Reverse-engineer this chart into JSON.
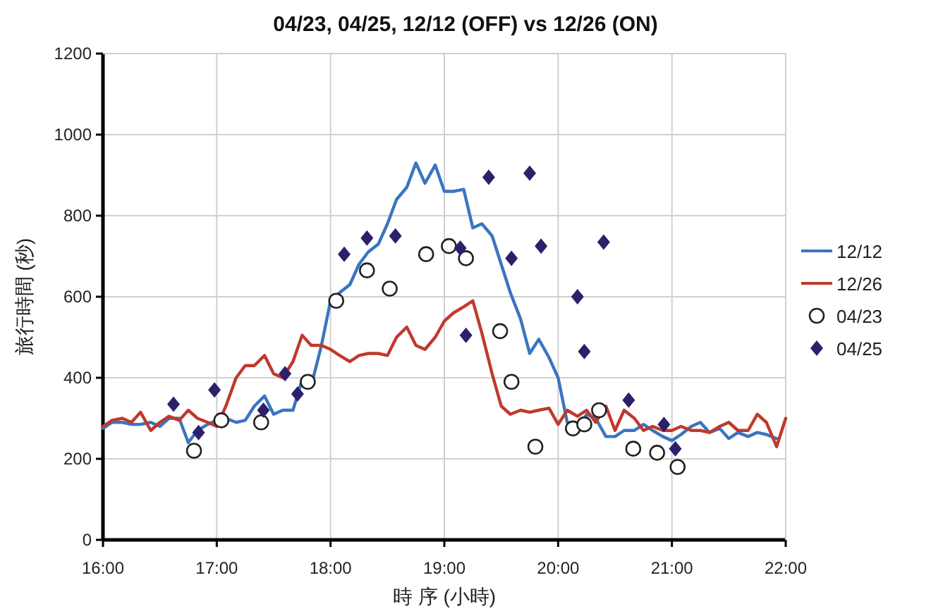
{
  "chart_data": {
    "type": "line",
    "title": "04/23, 04/25, 12/12 (OFF) vs 12/26 (ON)",
    "xlabel": "時 序 (小時)",
    "ylabel": "旅行時間 (秒)",
    "xlim": [
      16,
      22
    ],
    "ylim": [
      0,
      1200
    ],
    "xticks": [
      {
        "value": 16,
        "label": "16:00"
      },
      {
        "value": 17,
        "label": "17:00"
      },
      {
        "value": 18,
        "label": "18:00"
      },
      {
        "value": 19,
        "label": "19:00"
      },
      {
        "value": 20,
        "label": "20:00"
      },
      {
        "value": 21,
        "label": "21:00"
      },
      {
        "value": 22,
        "label": "22:00"
      }
    ],
    "yticks": [
      0,
      200,
      400,
      600,
      800,
      1000,
      1200
    ],
    "grid": true,
    "legend": "right",
    "series": [
      {
        "name": "12/12",
        "type": "line",
        "color": "#3a75c0",
        "marker": "none",
        "x": [
          16.0,
          16.08,
          16.17,
          16.25,
          16.33,
          16.42,
          16.5,
          16.58,
          16.67,
          16.75,
          16.83,
          16.92,
          17.0,
          17.08,
          17.17,
          17.25,
          17.33,
          17.42,
          17.5,
          17.58,
          17.67,
          17.75,
          17.83,
          17.92,
          18.0,
          18.08,
          18.17,
          18.25,
          18.33,
          18.42,
          18.5,
          18.58,
          18.67,
          18.75,
          18.83,
          18.92,
          19.0,
          19.08,
          19.17,
          19.25,
          19.33,
          19.42,
          19.5,
          19.58,
          19.67,
          19.75,
          19.83,
          19.92,
          20.0,
          20.08,
          20.17,
          20.25,
          20.33,
          20.42,
          20.5,
          20.58,
          20.67,
          20.75,
          20.83,
          20.92,
          21.0,
          21.08,
          21.17,
          21.25,
          21.33,
          21.42,
          21.5,
          21.58,
          21.67,
          21.75,
          21.83,
          21.92
        ],
        "values": [
          275,
          290,
          290,
          285,
          285,
          290,
          280,
          300,
          300,
          240,
          270,
          285,
          295,
          300,
          290,
          295,
          330,
          355,
          310,
          320,
          320,
          395,
          380,
          480,
          590,
          610,
          630,
          680,
          710,
          730,
          780,
          840,
          870,
          930,
          880,
          925,
          860,
          860,
          865,
          770,
          780,
          750,
          680,
          610,
          545,
          460,
          495,
          450,
          400,
          290,
          270,
          310,
          300,
          255,
          255,
          270,
          270,
          285,
          270,
          255,
          245,
          260,
          280,
          290,
          265,
          275,
          250,
          265,
          255,
          265,
          260,
          250
        ]
      },
      {
        "name": "12/26",
        "type": "line",
        "color": "#c0392b",
        "marker": "none",
        "x": [
          16.0,
          16.08,
          16.17,
          16.25,
          16.33,
          16.42,
          16.5,
          16.58,
          16.67,
          16.75,
          16.83,
          16.92,
          17.0,
          17.08,
          17.17,
          17.25,
          17.33,
          17.42,
          17.5,
          17.58,
          17.67,
          17.75,
          17.83,
          17.92,
          18.0,
          18.08,
          18.17,
          18.25,
          18.33,
          18.42,
          18.5,
          18.58,
          18.67,
          18.75,
          18.83,
          18.92,
          19.0,
          19.08,
          19.17,
          19.25,
          19.33,
          19.42,
          19.5,
          19.58,
          19.67,
          19.75,
          19.83,
          19.92,
          20.0,
          20.08,
          20.17,
          20.25,
          20.33,
          20.42,
          20.5,
          20.58,
          20.67,
          20.75,
          20.83,
          20.92,
          21.0,
          21.08,
          21.17,
          21.25,
          21.33,
          21.42,
          21.5,
          21.58,
          21.67,
          21.75,
          21.83,
          21.92,
          22.0
        ],
        "values": [
          280,
          295,
          300,
          290,
          315,
          270,
          290,
          305,
          295,
          320,
          300,
          290,
          280,
          330,
          400,
          430,
          430,
          455,
          410,
          400,
          440,
          505,
          480,
          480,
          470,
          455,
          440,
          455,
          460,
          460,
          455,
          500,
          525,
          480,
          470,
          500,
          540,
          560,
          575,
          590,
          510,
          410,
          330,
          310,
          320,
          315,
          320,
          325,
          285,
          320,
          305,
          320,
          290,
          330,
          270,
          320,
          300,
          270,
          280,
          270,
          270,
          280,
          270,
          270,
          265,
          280,
          290,
          270,
          270,
          310,
          290,
          230,
          300
        ]
      },
      {
        "name": "04/23",
        "type": "scatter",
        "color": "#222222",
        "marker": "circle",
        "x": [
          16.8,
          17.04,
          17.39,
          17.8,
          18.05,
          18.32,
          18.52,
          18.84,
          19.04,
          19.19,
          19.49,
          19.59,
          19.8,
          20.13,
          20.23,
          20.36,
          20.66,
          20.87,
          21.05
        ],
        "values": [
          220,
          295,
          290,
          390,
          590,
          665,
          620,
          705,
          725,
          695,
          515,
          390,
          230,
          275,
          285,
          320,
          225,
          215,
          180
        ]
      },
      {
        "name": "04/25",
        "type": "scatter",
        "color": "#2e1f6b",
        "marker": "diamond",
        "x": [
          16.62,
          16.84,
          16.98,
          17.41,
          17.6,
          17.71,
          18.12,
          18.32,
          18.57,
          19.14,
          19.19,
          19.39,
          19.59,
          19.75,
          19.85,
          20.17,
          20.23,
          20.4,
          20.62,
          20.93,
          21.03
        ],
        "values": [
          335,
          265,
          370,
          320,
          410,
          360,
          705,
          745,
          750,
          720,
          505,
          895,
          695,
          905,
          725,
          600,
          465,
          735,
          345,
          285,
          225
        ]
      }
    ]
  }
}
